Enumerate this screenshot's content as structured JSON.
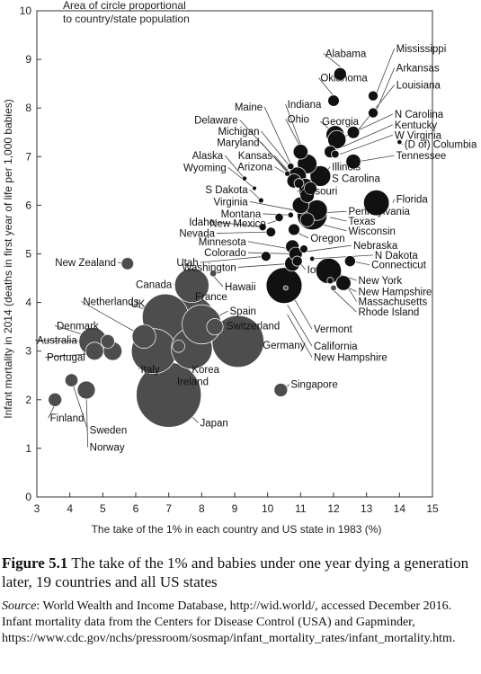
{
  "figure": {
    "number": "Figure 5.1",
    "caption": "The take of the 1% and babies under one year dying a generation later, 19 countries and all US states",
    "source_label": "Source",
    "source_text": ": World Wealth and Income Database, http://wid.world/, accessed December 2016. Infant mortality data from the Centers for Disease Control (USA) and Gapminder, https://www.cdc.gov/nchs/pressroom/sosmap/infant_mortality_rates/infant_mortality.htm."
  },
  "chart_data": {
    "type": "scatter",
    "xlabel": "The take of the 1% in each country and US state in 1983 (%)",
    "ylabel": "Infant mortality in 2014  (deaths in first year of life per 1,000 babies)",
    "annotation": [
      "Area of circle proportional",
      "to country/state population"
    ],
    "xlim": [
      3,
      15
    ],
    "ylim": [
      0,
      10
    ],
    "xticks": [
      3,
      4,
      5,
      6,
      7,
      8,
      9,
      10,
      11,
      12,
      13,
      14,
      15
    ],
    "yticks": [
      0,
      1,
      2,
      3,
      4,
      5,
      6,
      7,
      8,
      9,
      10
    ],
    "bubble_size": "population",
    "colors": {
      "point": "#4d4d4d",
      "edge": "#333333"
    },
    "points": [
      {
        "label": "Alabama",
        "x": 12.2,
        "y": 8.7,
        "pop": 4.8
      },
      {
        "label": "Mississippi",
        "x": 13.2,
        "y": 8.25,
        "pop": 3.0
      },
      {
        "label": "Oklahoma",
        "x": 12.0,
        "y": 8.15,
        "pop": 3.9
      },
      {
        "label": "Arkansas",
        "x": 13.2,
        "y": 7.9,
        "pop": 3.0
      },
      {
        "label": "Louisiana",
        "x": 12.6,
        "y": 7.5,
        "pop": 4.6
      },
      {
        "label": "N Carolina",
        "x": 12.1,
        "y": 7.35,
        "pop": 10.0
      },
      {
        "label": "Georgia",
        "x": 12.05,
        "y": 7.45,
        "pop": 10.1
      },
      {
        "label": "Kentucky",
        "x": 11.9,
        "y": 7.1,
        "pop": 4.4
      },
      {
        "label": "W Virginia",
        "x": 12.05,
        "y": 7.05,
        "pop": 1.8
      },
      {
        "label": "(D of) Columbia",
        "x": 14.0,
        "y": 7.3,
        "pop": 0.7
      },
      {
        "label": "Tennessee",
        "x": 12.6,
        "y": 6.9,
        "pop": 6.6
      },
      {
        "label": "Indiana",
        "x": 11.0,
        "y": 7.1,
        "pop": 6.6
      },
      {
        "label": "Ohio",
        "x": 11.2,
        "y": 6.85,
        "pop": 11.6
      },
      {
        "label": "Maine",
        "x": 10.7,
        "y": 6.8,
        "pop": 1.3
      },
      {
        "label": "Delaware",
        "x": 10.6,
        "y": 6.65,
        "pop": 0.9
      },
      {
        "label": "Michigan",
        "x": 10.9,
        "y": 6.6,
        "pop": 9.9
      },
      {
        "label": "Maryland",
        "x": 10.8,
        "y": 6.5,
        "pop": 6.0
      },
      {
        "label": "Kansas",
        "x": 10.95,
        "y": 6.45,
        "pop": 2.9
      },
      {
        "label": "Arizona",
        "x": 11.15,
        "y": 6.4,
        "pop": 6.7
      },
      {
        "label": "Illinois",
        "x": 11.6,
        "y": 6.6,
        "pop": 12.9
      },
      {
        "label": "S Carolina",
        "x": 11.3,
        "y": 6.35,
        "pop": 4.8
      },
      {
        "label": "Missouri",
        "x": 11.2,
        "y": 6.2,
        "pop": 6.1
      },
      {
        "label": "Alaska",
        "x": 9.3,
        "y": 6.55,
        "pop": 0.7
      },
      {
        "label": "Wyoming",
        "x": 9.6,
        "y": 6.35,
        "pop": 0.6
      },
      {
        "label": "S Dakota",
        "x": 9.8,
        "y": 6.1,
        "pop": 0.85
      },
      {
        "label": "Virginia",
        "x": 11.0,
        "y": 6.0,
        "pop": 8.3
      },
      {
        "label": "Florida",
        "x": 13.3,
        "y": 6.05,
        "pop": 19.9
      },
      {
        "label": "Pennsylvania",
        "x": 11.5,
        "y": 5.9,
        "pop": 12.8
      },
      {
        "label": "Montana",
        "x": 10.7,
        "y": 5.8,
        "pop": 1.0
      },
      {
        "label": "Texas",
        "x": 11.35,
        "y": 5.8,
        "pop": 27.0
      },
      {
        "label": "New Mexico",
        "x": 10.35,
        "y": 5.75,
        "pop": 2.1
      },
      {
        "label": "Wisconsin",
        "x": 11.2,
        "y": 5.7,
        "pop": 5.8
      },
      {
        "label": "Idaho",
        "x": 9.85,
        "y": 5.55,
        "pop": 1.6
      },
      {
        "label": "Nevada",
        "x": 10.1,
        "y": 5.45,
        "pop": 2.8
      },
      {
        "label": "Oregon",
        "x": 10.8,
        "y": 5.5,
        "pop": 4.0
      },
      {
        "label": "Minnesota",
        "x": 10.75,
        "y": 5.15,
        "pop": 5.5
      },
      {
        "label": "Nebraska",
        "x": 11.1,
        "y": 5.1,
        "pop": 1.9
      },
      {
        "label": "Colorado",
        "x": 10.85,
        "y": 5.0,
        "pop": 5.4
      },
      {
        "label": "Utah",
        "x": 9.95,
        "y": 4.95,
        "pop": 2.9
      },
      {
        "label": "N Dakota",
        "x": 11.35,
        "y": 4.9,
        "pop": 0.74
      },
      {
        "label": "Iowa",
        "x": 10.9,
        "y": 4.85,
        "pop": 3.1
      },
      {
        "label": "Connecticut",
        "x": 12.5,
        "y": 4.85,
        "pop": 3.6
      },
      {
        "label": "Washington",
        "x": 10.75,
        "y": 4.8,
        "pop": 7.1
      },
      {
        "label": "Hawaii",
        "x": 8.35,
        "y": 4.6,
        "pop": 1.4
      },
      {
        "label": "New York",
        "x": 11.85,
        "y": 4.65,
        "pop": 19.7
      },
      {
        "label": "New Hampshire (NE)",
        "x": 11.9,
        "y": 4.45,
        "pop": 1.3
      },
      {
        "label": "Massachusetts",
        "x": 12.3,
        "y": 4.4,
        "pop": 6.7
      },
      {
        "label": "Rhode Island",
        "x": 12.0,
        "y": 4.3,
        "pop": 1.05
      },
      {
        "label": "California",
        "x": 10.5,
        "y": 4.35,
        "pop": 38.8
      },
      {
        "label": "Vermont",
        "x": 10.55,
        "y": 4.3,
        "pop": 0.63
      },
      {
        "label": "New Zealand",
        "x": 5.75,
        "y": 4.8,
        "pop": 4.5
      },
      {
        "label": "Canada",
        "x": 7.7,
        "y": 4.35,
        "pop": 35.5
      },
      {
        "label": "UK",
        "x": 6.9,
        "y": 3.7,
        "pop": 64.5
      },
      {
        "label": "France",
        "x": 7.7,
        "y": 3.65,
        "pop": 66.3
      },
      {
        "label": "Spain",
        "x": 8.0,
        "y": 3.55,
        "pop": 46.5
      },
      {
        "label": "Netherlands",
        "x": 6.25,
        "y": 3.3,
        "pop": 16.9
      },
      {
        "label": "Switzerland",
        "x": 8.4,
        "y": 3.5,
        "pop": 8.2
      },
      {
        "label": "Denmark",
        "x": 5.15,
        "y": 3.2,
        "pop": 5.6
      },
      {
        "label": "Australia",
        "x": 4.7,
        "y": 3.2,
        "pop": 23.5
      },
      {
        "label": "Portugal",
        "x": 5.3,
        "y": 3.0,
        "pop": 10.4
      },
      {
        "label": "Sweden (upper)",
        "x": 4.75,
        "y": 3.0,
        "pop": 9.7
      },
      {
        "label": "Italy",
        "x": 6.55,
        "y": 3.0,
        "pop": 60.8
      },
      {
        "label": "Ireland",
        "x": 7.3,
        "y": 3.1,
        "pop": 4.6
      },
      {
        "label": "Korea",
        "x": 7.7,
        "y": 3.05,
        "pop": 50.4
      },
      {
        "label": "Germany",
        "x": 9.1,
        "y": 3.2,
        "pop": 80.9
      },
      {
        "label": "Sweden",
        "x": 4.5,
        "y": 2.2,
        "pop": 9.7
      },
      {
        "label": "Norway",
        "x": 4.05,
        "y": 2.4,
        "pop": 5.1
      },
      {
        "label": "Finland",
        "x": 3.55,
        "y": 2.0,
        "pop": 5.5
      },
      {
        "label": "Japan",
        "x": 7.0,
        "y": 2.1,
        "pop": 127.1
      },
      {
        "label": "Singapore",
        "x": 10.4,
        "y": 2.2,
        "pop": 5.5
      }
    ],
    "labels": [
      {
        "text": "Alabama",
        "x": 11.75,
        "y": 9.05,
        "px": 12.2,
        "py": 8.85,
        "anchor": "start"
      },
      {
        "text": "Mississippi",
        "x": 13.9,
        "y": 9.15,
        "px": 13.3,
        "py": 8.3,
        "anchor": "start"
      },
      {
        "text": "Oklahoma",
        "x": 11.6,
        "y": 8.55,
        "px": 12.0,
        "py": 8.25,
        "anchor": "start"
      },
      {
        "text": "Arkansas",
        "x": 13.9,
        "y": 8.75,
        "px": 13.3,
        "py": 7.95,
        "anchor": "start"
      },
      {
        "text": "Louisiana",
        "x": 13.9,
        "y": 8.4,
        "px": 12.75,
        "py": 7.55,
        "anchor": "start"
      },
      {
        "text": "Georgia",
        "x": 11.65,
        "y": 7.65,
        "px": 12.0,
        "py": 7.5,
        "anchor": "start"
      },
      {
        "text": "N Carolina",
        "x": 13.85,
        "y": 7.8,
        "px": 12.3,
        "py": 7.4,
        "anchor": "start"
      },
      {
        "text": "Kentucky",
        "x": 13.85,
        "y": 7.58,
        "px": 12.1,
        "py": 7.15,
        "anchor": "start"
      },
      {
        "text": "W Virginia",
        "x": 13.85,
        "y": 7.37,
        "px": 12.2,
        "py": 7.05,
        "anchor": "start"
      },
      {
        "text": "(D of) Columbia",
        "x": 14.15,
        "y": 7.18,
        "px": 14.0,
        "py": 7.3,
        "anchor": "start"
      },
      {
        "text": "Tennessee",
        "x": 13.9,
        "y": 6.95,
        "px": 12.75,
        "py": 6.9,
        "anchor": "start"
      },
      {
        "text": "Indiana",
        "x": 10.6,
        "y": 8.0,
        "px": 11.0,
        "py": 7.25,
        "anchor": "start"
      },
      {
        "text": "Ohio",
        "x": 10.6,
        "y": 7.7,
        "px": 11.15,
        "py": 7.0,
        "anchor": "start"
      },
      {
        "text": "Maine",
        "x": 9.85,
        "y": 7.95,
        "px": 10.7,
        "py": 6.85,
        "anchor": "end"
      },
      {
        "text": "Delaware",
        "x": 9.1,
        "y": 7.68,
        "px": 10.6,
        "py": 6.7,
        "anchor": "end"
      },
      {
        "text": "Michigan",
        "x": 9.75,
        "y": 7.45,
        "px": 10.85,
        "py": 6.65,
        "anchor": "end"
      },
      {
        "text": "Maryland",
        "x": 9.75,
        "y": 7.22,
        "px": 10.75,
        "py": 6.55,
        "anchor": "end"
      },
      {
        "text": "Kansas",
        "x": 10.15,
        "y": 6.95,
        "px": 10.9,
        "py": 6.5,
        "anchor": "end"
      },
      {
        "text": "Arizona",
        "x": 10.15,
        "y": 6.72,
        "px": 11.05,
        "py": 6.45,
        "anchor": "end"
      },
      {
        "text": "Illinois",
        "x": 11.95,
        "y": 6.72,
        "px": 11.75,
        "py": 6.65,
        "anchor": "start"
      },
      {
        "text": "S Carolina",
        "x": 11.95,
        "y": 6.48,
        "px": 11.45,
        "py": 6.4,
        "anchor": "start"
      },
      {
        "text": "Missouri",
        "x": 10.95,
        "y": 6.22,
        "px": 11.2,
        "py": 6.25,
        "anchor": "start"
      },
      {
        "text": "Alaska",
        "x": 8.65,
        "y": 6.95,
        "px": 9.3,
        "py": 6.55,
        "anchor": "end"
      },
      {
        "text": "Wyoming",
        "x": 8.75,
        "y": 6.7,
        "px": 9.6,
        "py": 6.35,
        "anchor": "end"
      },
      {
        "text": "S Dakota",
        "x": 9.4,
        "y": 6.25,
        "px": 9.8,
        "py": 6.1,
        "anchor": "end"
      },
      {
        "text": "Virginia",
        "x": 9.4,
        "y": 6.0,
        "px": 10.8,
        "py": 5.9,
        "anchor": "end"
      },
      {
        "text": "Florida",
        "x": 13.9,
        "y": 6.05,
        "px": 13.8,
        "py": 6.05,
        "anchor": "start"
      },
      {
        "text": "Pennsylvania",
        "x": 12.45,
        "y": 5.8,
        "px": 11.8,
        "py": 5.85,
        "anchor": "start"
      },
      {
        "text": "Texas",
        "x": 12.45,
        "y": 5.6,
        "px": 11.9,
        "py": 5.75,
        "anchor": "start"
      },
      {
        "text": "Wisconsin",
        "x": 12.45,
        "y": 5.4,
        "px": 11.4,
        "py": 5.65,
        "anchor": "start"
      },
      {
        "text": "Montana",
        "x": 9.8,
        "y": 5.75,
        "px": 10.7,
        "py": 5.8,
        "anchor": "end"
      },
      {
        "text": "New Mexico",
        "x": 9.95,
        "y": 5.55,
        "px": 10.35,
        "py": 5.7,
        "anchor": "end"
      },
      {
        "text": "Idaho",
        "x": 8.4,
        "y": 5.58,
        "px": 9.85,
        "py": 5.55,
        "anchor": "end"
      },
      {
        "text": "Nevada",
        "x": 8.4,
        "y": 5.35,
        "px": 10.05,
        "py": 5.45,
        "anchor": "end"
      },
      {
        "text": "Oregon",
        "x": 11.3,
        "y": 5.25,
        "px": 10.85,
        "py": 5.45,
        "anchor": "start"
      },
      {
        "text": "Minnesota",
        "x": 9.35,
        "y": 5.18,
        "px": 10.7,
        "py": 5.1,
        "anchor": "end"
      },
      {
        "text": "Nebraska",
        "x": 12.6,
        "y": 5.1,
        "px": 11.2,
        "py": 5.05,
        "anchor": "start"
      },
      {
        "text": "Colorado",
        "x": 9.35,
        "y": 4.95,
        "px": 10.8,
        "py": 5.0,
        "anchor": "end"
      },
      {
        "text": "Utah",
        "x": 7.9,
        "y": 4.75,
        "px": 9.95,
        "py": 4.95,
        "anchor": "end"
      },
      {
        "text": "N Dakota",
        "x": 13.25,
        "y": 4.9,
        "px": 11.4,
        "py": 4.9,
        "anchor": "start"
      },
      {
        "text": "Iowa",
        "x": 11.2,
        "y": 4.6,
        "px": 11.0,
        "py": 4.8,
        "anchor": "start"
      },
      {
        "text": "Connecticut",
        "x": 13.15,
        "y": 4.7,
        "px": 12.55,
        "py": 4.85,
        "anchor": "start"
      },
      {
        "text": "Washington",
        "x": 9.05,
        "y": 4.65,
        "px": 10.7,
        "py": 4.8,
        "anchor": "end"
      },
      {
        "text": "New York",
        "x": 12.75,
        "y": 4.38,
        "px": 12.1,
        "py": 4.6,
        "anchor": "start"
      },
      {
        "text": "Hawaii",
        "x": 8.7,
        "y": 4.25,
        "px": 8.35,
        "py": 4.55,
        "anchor": "start"
      },
      {
        "text": "New Hampshire",
        "x": 12.75,
        "y": 4.15,
        "px": 12.0,
        "py": 4.45,
        "anchor": "start"
      },
      {
        "text": "Massachusetts",
        "x": 12.75,
        "y": 3.95,
        "px": 12.4,
        "py": 4.35,
        "anchor": "start"
      },
      {
        "text": "Rhode Island",
        "x": 12.75,
        "y": 3.73,
        "px": 12.0,
        "py": 4.25,
        "anchor": "start"
      },
      {
        "text": "Vermont",
        "x": 11.4,
        "y": 3.38,
        "px": 10.7,
        "py": 4.2,
        "anchor": "start"
      },
      {
        "text": "California",
        "x": 11.4,
        "y": 3.03,
        "px": 10.6,
        "py": 3.95,
        "anchor": "start"
      },
      {
        "text": "New Hampshire",
        "x": 11.4,
        "y": 2.8,
        "px": 10.6,
        "py": 3.75,
        "anchor": "start"
      },
      {
        "text": "New Zealand",
        "x": 5.4,
        "y": 4.75,
        "px": 5.65,
        "py": 4.8,
        "anchor": "end"
      },
      {
        "text": "Canada",
        "x": 7.1,
        "y": 4.3,
        "px": 7.3,
        "py": 4.35,
        "anchor": "end"
      },
      {
        "text": "Netherlands",
        "x": 4.4,
        "y": 3.95,
        "px": 6.1,
        "py": 3.35,
        "anchor": "start"
      },
      {
        "text": "UK",
        "x": 5.85,
        "y": 3.9,
        "px": 6.5,
        "py": 3.8,
        "anchor": "start"
      },
      {
        "text": "France",
        "x": 7.8,
        "y": 4.05,
        "px": 7.6,
        "py": 3.85,
        "anchor": "start"
      },
      {
        "text": "Spain",
        "x": 8.85,
        "y": 3.75,
        "px": 8.3,
        "py": 3.65,
        "anchor": "start"
      },
      {
        "text": "Switzerland",
        "x": 8.75,
        "y": 3.45,
        "px": 8.5,
        "py": 3.5,
        "anchor": "start"
      },
      {
        "text": "Denmark",
        "x": 3.6,
        "y": 3.45,
        "px": 5.05,
        "py": 3.2,
        "anchor": "start"
      },
      {
        "text": "Australia",
        "x": 3.0,
        "y": 3.15,
        "px": 4.4,
        "py": 3.2,
        "anchor": "start"
      },
      {
        "text": "Portugal",
        "x": 3.3,
        "y": 2.8,
        "px": 4.75,
        "py": 2.95,
        "anchor": "start"
      },
      {
        "text": "Germany",
        "x": 9.85,
        "y": 3.05,
        "px": 9.8,
        "py": 3.15,
        "anchor": "start"
      },
      {
        "text": "Italy",
        "x": 6.15,
        "y": 2.55,
        "px": 6.4,
        "py": 2.8,
        "anchor": "start"
      },
      {
        "text": "Korea",
        "x": 7.7,
        "y": 2.55,
        "px": 7.8,
        "py": 2.75,
        "anchor": "start"
      },
      {
        "text": "Ireland",
        "x": 7.25,
        "y": 2.3,
        "px": 7.3,
        "py": 3.0,
        "anchor": "start"
      },
      {
        "text": "Japan",
        "x": 7.95,
        "y": 1.45,
        "px": 7.5,
        "py": 1.8,
        "anchor": "start"
      },
      {
        "text": "Singapore",
        "x": 10.7,
        "y": 2.25,
        "px": 10.55,
        "py": 2.2,
        "anchor": "start"
      },
      {
        "text": "Finland",
        "x": 3.4,
        "y": 1.55,
        "px": 3.55,
        "py": 1.9,
        "anchor": "start"
      },
      {
        "text": "Sweden",
        "x": 4.6,
        "y": 1.3,
        "px": 4.1,
        "py": 2.3,
        "anchor": "start"
      },
      {
        "text": "Norway",
        "x": 4.6,
        "y": 0.95,
        "px": 4.5,
        "py": 2.1,
        "anchor": "start"
      }
    ]
  }
}
